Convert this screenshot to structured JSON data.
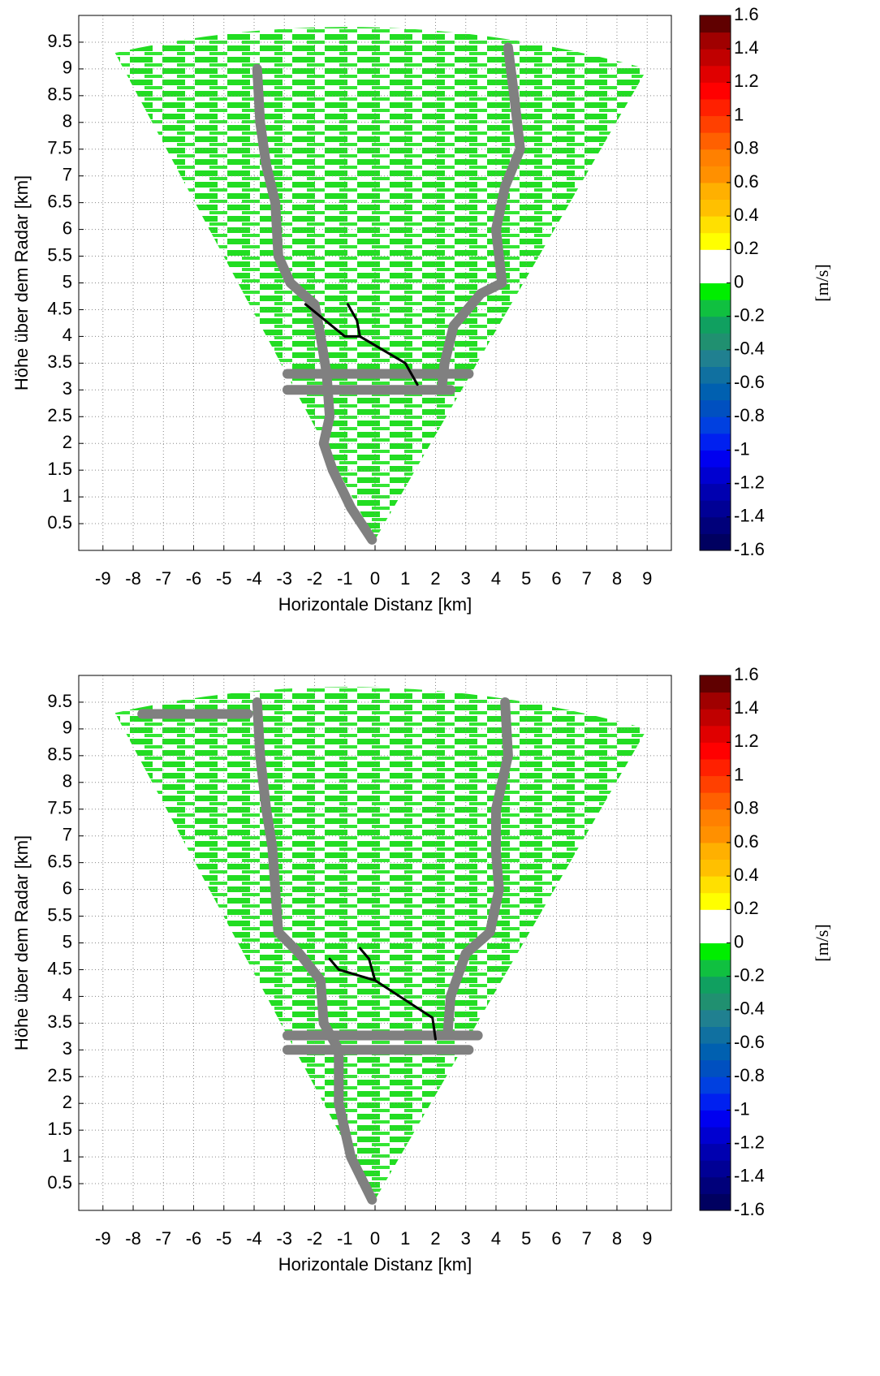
{
  "chart_data": [
    {
      "type": "field",
      "xlabel": "Horizontale Distanz [km]",
      "ylabel": "Höhe über dem Radar [km]",
      "xlim": [
        -9.8,
        9.8
      ],
      "ylim": [
        0,
        10
      ],
      "xticks": [
        -9,
        -8,
        -7,
        -6,
        -5,
        -4,
        -3,
        -2,
        -1,
        0,
        1,
        2,
        3,
        4,
        5,
        6,
        7,
        8,
        9
      ],
      "yticks": [
        0.5,
        1,
        1.5,
        2,
        2.5,
        3,
        3.5,
        4,
        4.5,
        5,
        5.5,
        6,
        6.5,
        7,
        7.5,
        8,
        8.5,
        9,
        9.5
      ],
      "grid": true,
      "colorbar": {
        "label": "[m/s]",
        "clim": [
          -1.6,
          1.6
        ],
        "ticks": [
          1.6,
          1.4,
          1.2,
          1,
          0.8,
          0.6,
          0.4,
          0.2,
          0,
          -0.2,
          -0.4,
          -0.6,
          -0.8,
          -1,
          -1.2,
          -1.4,
          -1.6
        ],
        "colors": [
          "#000060",
          "#00007a",
          "#000095",
          "#0000b0",
          "#0000d0",
          "#0000f0",
          "#0020f0",
          "#0040e0",
          "#0050c0",
          "#0060b0",
          "#1070a0",
          "#208090",
          "#209070",
          "#10a060",
          "#10c040",
          "#00ee00",
          "#ffffff",
          "#ffffff",
          "#ffff00",
          "#ffe000",
          "#ffc000",
          "#ffb000",
          "#ff9000",
          "#ff8000",
          "#ff6000",
          "#ff4000",
          "#ff2000",
          "#ff0000",
          "#e00000",
          "#c00000",
          "#a00000",
          "#600000"
        ]
      },
      "series": [
        {
          "color": "#808080",
          "x": [
            -3.9,
            -3.8,
            -3.6,
            -3.3,
            -3.2,
            -2.8,
            -2.0,
            -1.8,
            -1.6,
            -1.5,
            -1.7,
            -1.4,
            -0.8,
            -0.1
          ],
          "y": [
            9.0,
            8.0,
            7.2,
            6.5,
            5.5,
            5.0,
            4.6,
            4.0,
            3.3,
            2.5,
            2.0,
            1.5,
            0.8,
            0.2
          ]
        },
        {
          "color": "#808080",
          "x": [
            4.4,
            4.6,
            4.8,
            4.3,
            4.0,
            4.2,
            3.5,
            2.6,
            2.3,
            2.2
          ],
          "y": [
            9.4,
            8.5,
            7.5,
            6.8,
            6.0,
            5.0,
            4.8,
            4.2,
            3.5,
            3.0
          ]
        },
        {
          "color": "#808080",
          "x": [
            -2.9,
            3.1
          ],
          "y": [
            3.3,
            3.3
          ]
        },
        {
          "color": "#808080",
          "x": [
            -2.9,
            2.5
          ],
          "y": [
            3.0,
            3.0
          ]
        },
        {
          "color": "#000000",
          "x": [
            -2.3,
            -1.0,
            -0.5,
            1.0,
            1.4
          ],
          "y": [
            4.6,
            4.0,
            4.0,
            3.5,
            3.1
          ]
        },
        {
          "color": "#000000",
          "x": [
            -0.5,
            -0.6,
            -0.9
          ],
          "y": [
            4.0,
            4.3,
            4.6
          ]
        }
      ]
    },
    {
      "type": "field",
      "xlabel": "Horizontale Distanz [km]",
      "ylabel": "Höhe über dem Radar [km]",
      "xlim": [
        -9.8,
        9.8
      ],
      "ylim": [
        0,
        10
      ],
      "xticks": [
        -9,
        -8,
        -7,
        -6,
        -5,
        -4,
        -3,
        -2,
        -1,
        0,
        1,
        2,
        3,
        4,
        5,
        6,
        7,
        8,
        9
      ],
      "yticks": [
        0.5,
        1,
        1.5,
        2,
        2.5,
        3,
        3.5,
        4,
        4.5,
        5,
        5.5,
        6,
        6.5,
        7,
        7.5,
        8,
        8.5,
        9,
        9.5
      ],
      "grid": true,
      "colorbar": {
        "label": "[m/s]",
        "clim": [
          -1.6,
          1.6
        ],
        "ticks": [
          1.6,
          1.4,
          1.2,
          1,
          0.8,
          0.6,
          0.4,
          0.2,
          0,
          -0.2,
          -0.4,
          -0.6,
          -0.8,
          -1,
          -1.2,
          -1.4,
          -1.6
        ],
        "colors": [
          "#000060",
          "#00007a",
          "#000095",
          "#0000b0",
          "#0000d0",
          "#0000f0",
          "#0020f0",
          "#0040e0",
          "#0050c0",
          "#0060b0",
          "#1070a0",
          "#208090",
          "#209070",
          "#10a060",
          "#10c040",
          "#00ee00",
          "#ffffff",
          "#ffffff",
          "#ffff00",
          "#ffe000",
          "#ffc000",
          "#ffb000",
          "#ff9000",
          "#ff8000",
          "#ff6000",
          "#ff4000",
          "#ff2000",
          "#ff0000",
          "#e00000",
          "#c00000",
          "#a00000",
          "#600000"
        ]
      },
      "series": [
        {
          "color": "#808080",
          "x": [
            -3.9,
            -3.8,
            -3.6,
            -3.4,
            -3.3,
            -3.2,
            -2.5,
            -1.8,
            -1.7,
            -1.2,
            -1.2,
            -0.8,
            -0.1
          ],
          "y": [
            9.5,
            8.5,
            7.5,
            6.8,
            6.0,
            5.2,
            4.8,
            4.3,
            3.5,
            3.0,
            2.0,
            1.0,
            0.2
          ]
        },
        {
          "color": "#808080",
          "x": [
            4.3,
            4.4,
            4.0,
            4.0,
            4.1,
            3.8,
            3.0,
            2.5,
            2.4
          ],
          "y": [
            9.5,
            8.5,
            7.5,
            6.7,
            6.0,
            5.2,
            4.8,
            4.0,
            3.3
          ]
        },
        {
          "color": "#808080",
          "x": [
            -2.9,
            3.4
          ],
          "y": [
            3.27,
            3.27
          ]
        },
        {
          "color": "#808080",
          "x": [
            -2.9,
            3.1
          ],
          "y": [
            3.0,
            3.0
          ]
        },
        {
          "color": "#808080",
          "x": [
            -7.7,
            -4.2
          ],
          "y": [
            9.28,
            9.28
          ]
        },
        {
          "color": "#000000",
          "x": [
            -1.5,
            -1.2,
            0.0,
            1.9,
            2.0
          ],
          "y": [
            4.7,
            4.5,
            4.3,
            3.6,
            3.2
          ]
        },
        {
          "color": "#000000",
          "x": [
            0.0,
            -0.2,
            -0.5
          ],
          "y": [
            4.3,
            4.7,
            4.9
          ]
        }
      ]
    }
  ]
}
